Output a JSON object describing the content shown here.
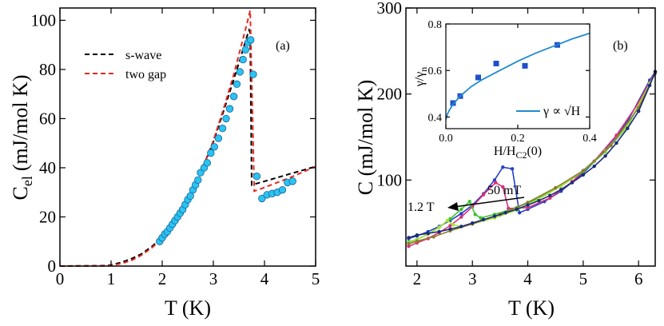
{
  "chart_data": [
    {
      "type": "line",
      "panel_label": "(a)",
      "xlabel": "T (K)",
      "ylabel_main": "C",
      "ylabel_sub": "el",
      "ylabel_unit": "(mJ/mol K)",
      "xlim": [
        0,
        5
      ],
      "ylim": [
        0,
        105
      ],
      "xticks": [
        0,
        1,
        2,
        3,
        4,
        5
      ],
      "yticks": [
        0,
        20,
        40,
        60,
        80,
        100
      ],
      "legend_position": "top-left",
      "series": [
        {
          "name": "s-wave",
          "style": "dashed",
          "color": "#000000",
          "x": [
            0,
            0.9,
            1.0,
            1.2,
            1.4,
            1.6,
            1.8,
            2.0,
            2.2,
            2.4,
            2.6,
            2.8,
            3.0,
            3.2,
            3.4,
            3.55,
            3.65,
            3.7,
            3.72,
            3.75,
            4.0,
            4.5,
            5.0
          ],
          "y": [
            0,
            0.2,
            0.5,
            1.5,
            3,
            5,
            8,
            11.5,
            16.5,
            23,
            31,
            40.5,
            50.5,
            63,
            76,
            86,
            93,
            96,
            95,
            33,
            34.5,
            37.5,
            40.5
          ]
        },
        {
          "name": "two gap",
          "style": "dashed",
          "color": "#e32b22",
          "x": [
            0,
            0.9,
            1.0,
            1.2,
            1.4,
            1.6,
            1.8,
            2.0,
            2.2,
            2.4,
            2.6,
            2.8,
            3.0,
            3.2,
            3.4,
            3.55,
            3.65,
            3.72,
            3.8,
            4.0,
            4.5,
            5.0
          ],
          "y": [
            0,
            0.1,
            0.3,
            1,
            2.3,
            4.5,
            7.5,
            11,
            16,
            23,
            31,
            40.5,
            51,
            64,
            78,
            90,
            98,
            104,
            30.5,
            32,
            36,
            40.5
          ]
        },
        {
          "name": "",
          "style": "markers",
          "color": "#29c4f0",
          "x": [
            1.95,
            2.0,
            2.05,
            2.1,
            2.15,
            2.2,
            2.25,
            2.3,
            2.35,
            2.4,
            2.45,
            2.5,
            2.55,
            2.6,
            2.65,
            2.7,
            2.75,
            2.82,
            2.88,
            2.95,
            3.02,
            3.1,
            3.18,
            3.25,
            3.32,
            3.4,
            3.46,
            3.52,
            3.58,
            3.63,
            3.68,
            3.73,
            3.78,
            3.85,
            3.95,
            4.05,
            4.15,
            4.25,
            4.35,
            4.45,
            4.55
          ],
          "y": [
            10,
            11.5,
            13,
            14,
            15.5,
            17,
            18.5,
            20,
            21.5,
            23,
            25,
            27,
            28.5,
            31,
            33,
            35,
            38,
            40,
            42,
            46,
            48.5,
            52,
            56,
            60,
            64,
            69,
            74,
            79,
            84,
            88,
            91,
            92,
            78,
            36.5,
            27.5,
            29,
            29.5,
            30,
            31,
            34,
            34.5
          ]
        }
      ]
    },
    {
      "type": "line",
      "panel_label": "(b)",
      "xlabel": "T (K)",
      "ylabel": "C (mJ/mol K)",
      "xlim": [
        1.8,
        6.3
      ],
      "ylim": [
        0,
        300
      ],
      "xticks": [
        2,
        3,
        4,
        5,
        6
      ],
      "yticks": [
        100,
        200,
        300
      ],
      "annotations": [
        "50 mT",
        "1.2 T"
      ],
      "series": [
        {
          "color": "#2640c8",
          "x": [
            1.85,
            2.0,
            2.2,
            2.4,
            2.6,
            2.8,
            3.0,
            3.2,
            3.4,
            3.55,
            3.72,
            3.85,
            4.0,
            4.3,
            4.6,
            5.0,
            5.4,
            5.8,
            6.2,
            6.3
          ],
          "y": [
            32,
            35,
            40,
            46,
            53,
            61,
            71,
            84,
            100,
            115,
            113,
            62,
            66,
            75,
            87,
            108,
            135,
            168,
            216,
            226
          ]
        },
        {
          "color": "#d9317b",
          "x": [
            1.85,
            2.0,
            2.2,
            2.4,
            2.6,
            2.8,
            3.0,
            3.2,
            3.42,
            3.55,
            3.65,
            4.0,
            4.4,
            4.8,
            5.2,
            5.6,
            6.0,
            6.3
          ],
          "y": [
            23,
            27,
            32,
            39,
            47,
            57,
            69,
            83,
            97,
            92,
            67,
            68,
            79,
            98,
            122,
            152,
            190,
            226
          ]
        },
        {
          "color": "#3ec22e",
          "x": [
            1.85,
            2.0,
            2.2,
            2.4,
            2.6,
            2.8,
            2.95,
            3.05,
            3.15,
            3.4,
            3.8,
            4.2,
            4.6,
            5.0,
            5.4,
            5.8,
            6.2,
            6.3
          ],
          "y": [
            28,
            31,
            37,
            45,
            55,
            66,
            75,
            60,
            56,
            60,
            68,
            79,
            93,
            110,
            133,
            162,
            212,
            225
          ]
        },
        {
          "color": "#a6e23f",
          "x": [
            1.85,
            2.0,
            2.2,
            2.4,
            2.55,
            2.65,
            2.8,
            3.0,
            3.4,
            3.8,
            4.2,
            4.6,
            5.0,
            5.4,
            5.8,
            6.2,
            6.3
          ],
          "y": [
            27,
            31,
            37,
            45,
            53,
            48,
            46,
            49,
            56,
            65,
            78,
            93,
            111,
            134,
            163,
            212,
            225
          ]
        },
        {
          "color": "#8b7d2c",
          "x": [
            1.85,
            2.0,
            2.3,
            2.6,
            3.0,
            3.5,
            4.0,
            4.5,
            5.0,
            5.5,
            6.0,
            6.3
          ],
          "y": [
            26,
            29,
            34,
            41,
            49,
            60,
            74,
            91,
            111,
            140,
            184,
            224
          ]
        },
        {
          "color": "#1c2c78",
          "x": [
            1.85,
            2.0,
            2.2,
            2.4,
            2.6,
            2.8,
            3.0,
            3.2,
            3.4,
            3.6,
            3.8,
            4.0,
            4.2,
            4.4,
            4.6,
            4.8,
            5.0,
            5.2,
            5.4,
            5.6,
            5.8,
            6.0,
            6.2,
            6.3
          ],
          "y": [
            33,
            36,
            38,
            40,
            43,
            46,
            50,
            54,
            58,
            62,
            66,
            71,
            76,
            82,
            89,
            97,
            106,
            116,
            128,
            143,
            160,
            180,
            210,
            226
          ]
        }
      ]
    },
    {
      "type": "scatter",
      "xlabel_main": "H/H",
      "xlabel_sub": "C2",
      "xlabel_tail": "(0)",
      "ylabel_num": "γ",
      "ylabel_den": "γ",
      "ylabel_den_sub": "n",
      "xlim": [
        0,
        0.4
      ],
      "ylim": [
        0.35,
        0.8
      ],
      "xticks": [
        "0.0",
        "0.2",
        "0.4"
      ],
      "yticks": [
        "0.4",
        "0.6",
        "0.8"
      ],
      "legend": "γ ∝ √H",
      "legend_position": "bottom-right",
      "series": [
        {
          "name": "data",
          "style": "squares",
          "color": "#1f4fc9",
          "x": [
            0.02,
            0.04,
            0.09,
            0.14,
            0.22,
            0.31
          ],
          "y": [
            0.46,
            0.49,
            0.57,
            0.63,
            0.62,
            0.71
          ]
        },
        {
          "name": "γ ∝ √H",
          "style": "line",
          "color": "#1f8bd0",
          "x": [
            0.0,
            0.005,
            0.01,
            0.02,
            0.04,
            0.07,
            0.1,
            0.15,
            0.2,
            0.25,
            0.3,
            0.35,
            0.4
          ],
          "y": [
            0.39,
            0.415,
            0.43,
            0.455,
            0.49,
            0.53,
            0.56,
            0.6,
            0.64,
            0.675,
            0.705,
            0.735,
            0.76
          ]
        }
      ]
    }
  ]
}
